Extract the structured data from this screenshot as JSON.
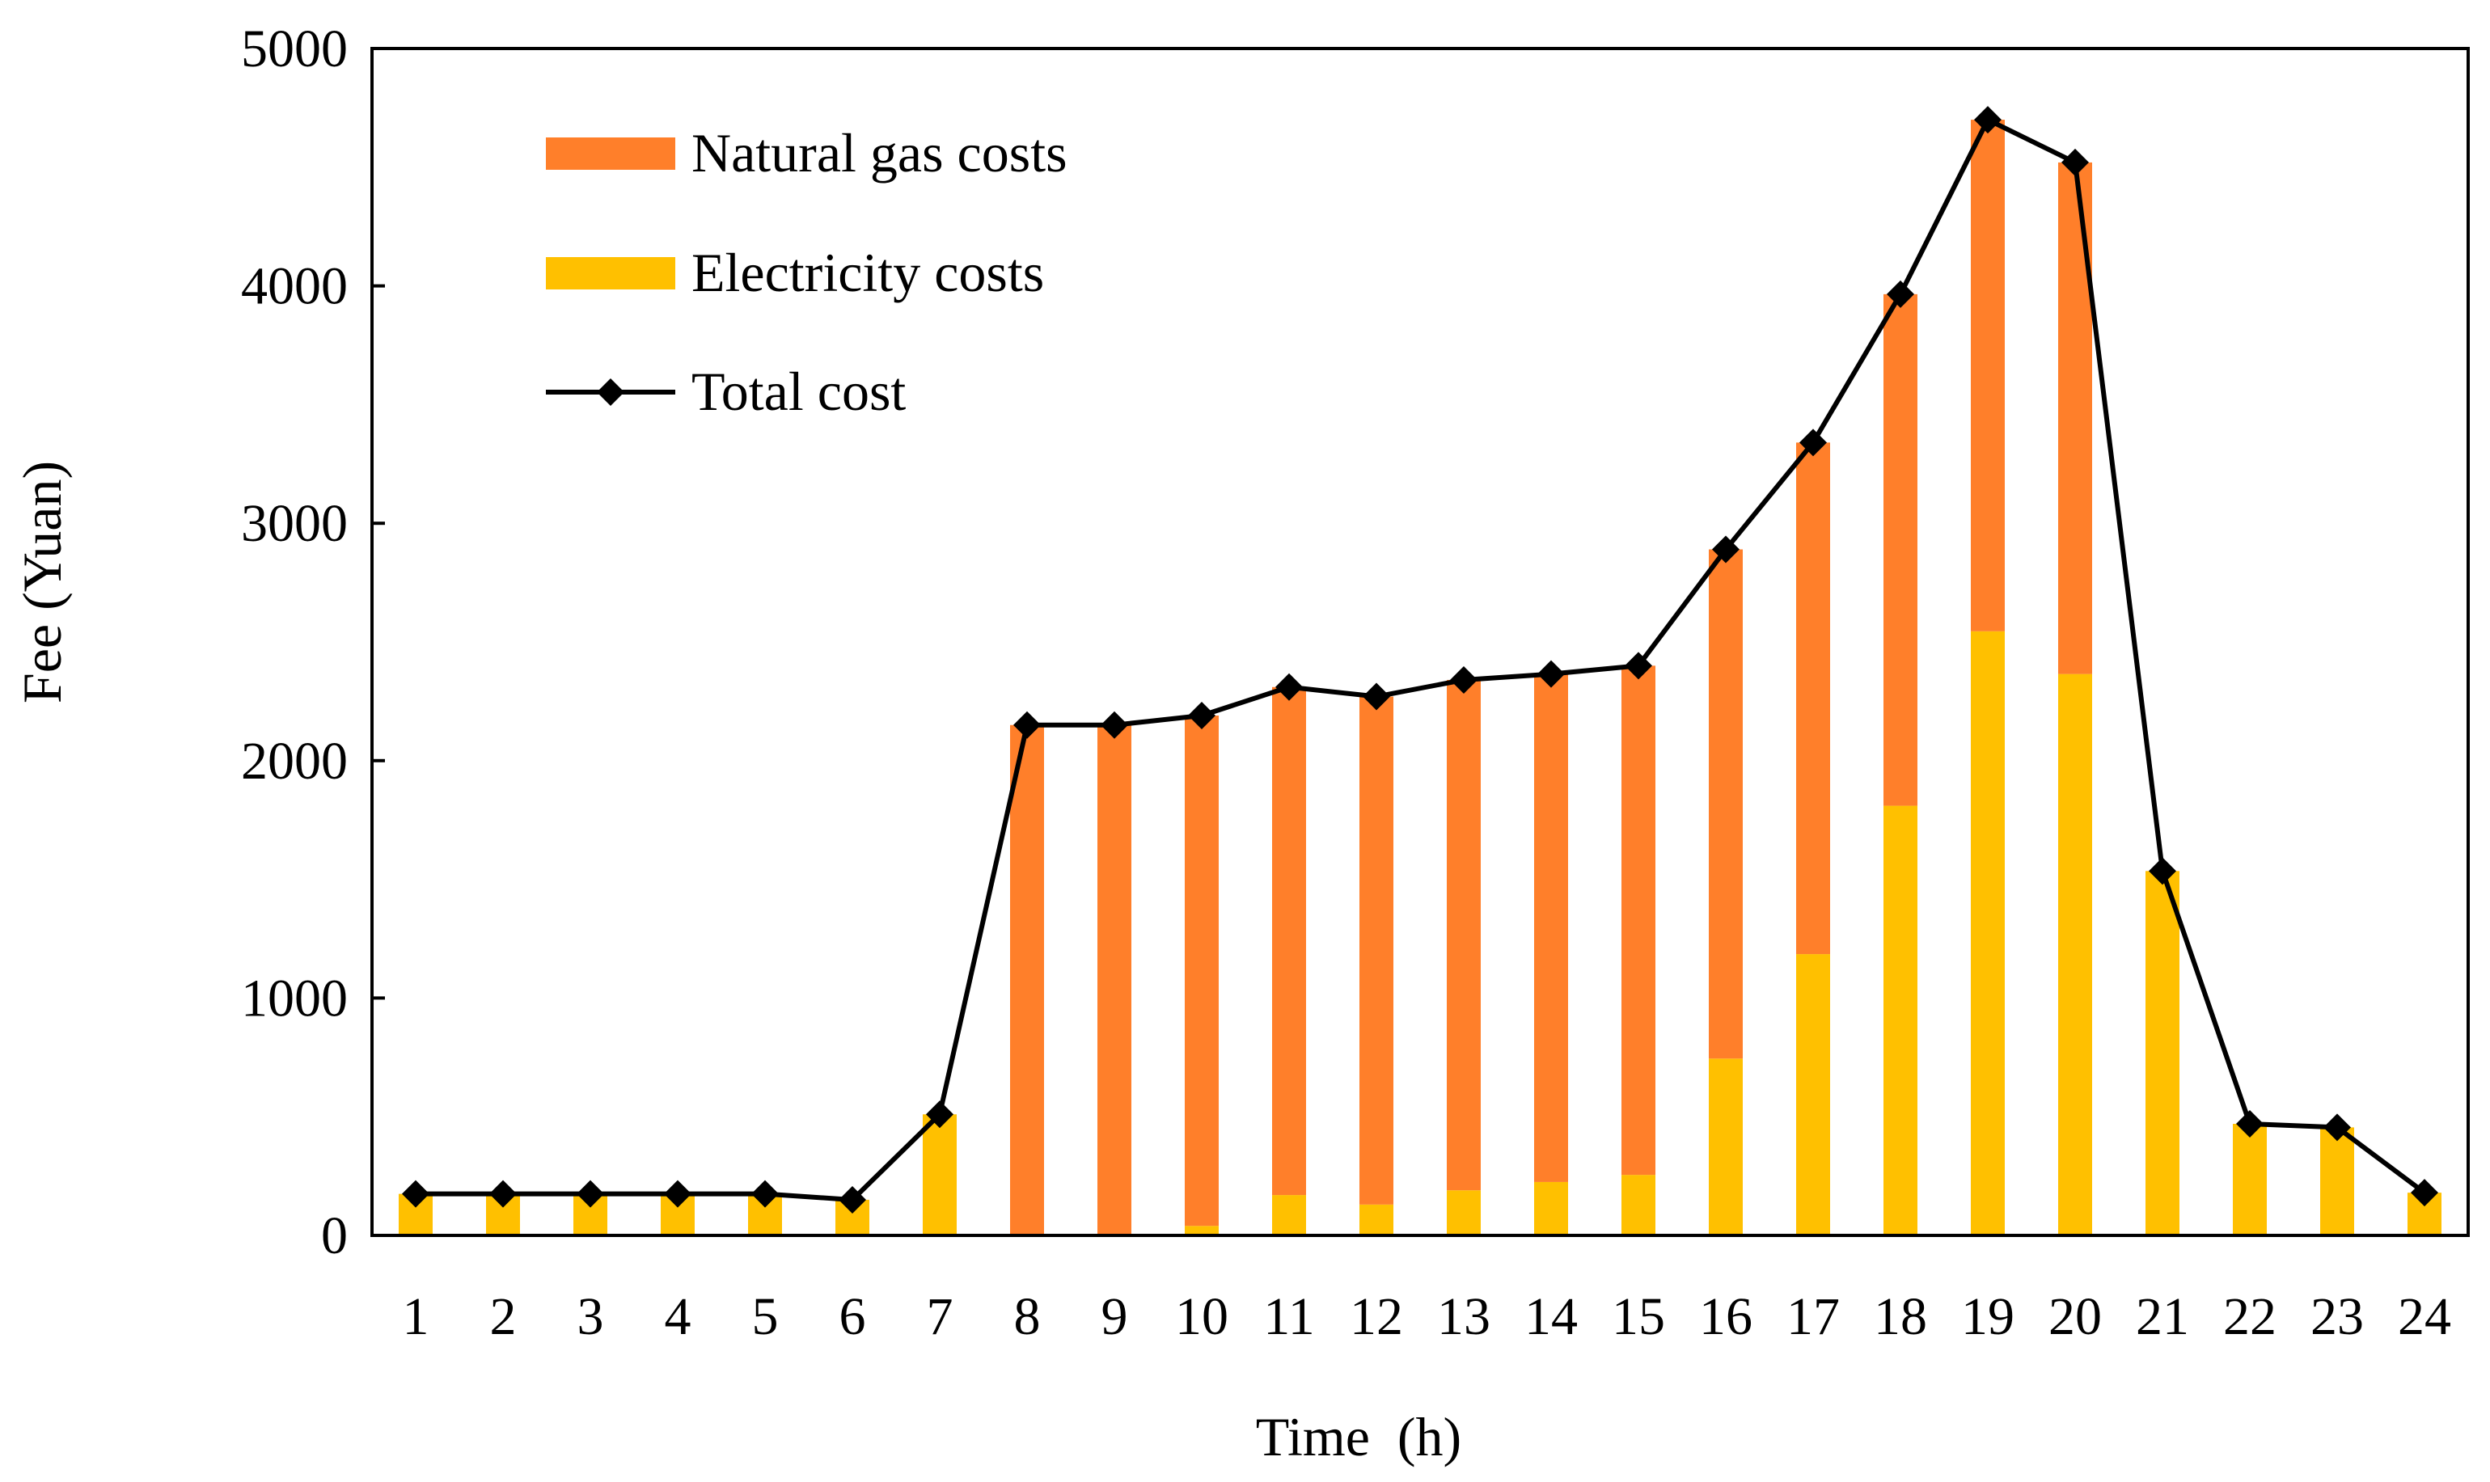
{
  "chart_data": {
    "type": "bar",
    "stacked": true,
    "title": "",
    "xlabel": "Time  (h)",
    "ylabel": "Fee (Yuan)",
    "ylim": [
      0,
      5000
    ],
    "yticks": [
      0,
      1000,
      2000,
      3000,
      4000,
      5000
    ],
    "ytick_labels": [
      "0",
      "1000",
      "2000",
      "3000",
      "4000",
      "5000"
    ],
    "categories": [
      "1",
      "2",
      "3",
      "4",
      "5",
      "6",
      "7",
      "8",
      "9",
      "10",
      "11",
      "12",
      "13",
      "14",
      "15",
      "16",
      "17",
      "18",
      "19",
      "20",
      "21",
      "22",
      "23",
      "24"
    ],
    "series": [
      {
        "name": "Electricity costs",
        "kind": "bar",
        "color": "#FFC000",
        "values": [
          175,
          175,
          175,
          175,
          175,
          150,
          510,
          0,
          0,
          40,
          170,
          130,
          190,
          225,
          255,
          745,
          1185,
          1810,
          2545,
          2365,
          1535,
          470,
          455,
          180
        ]
      },
      {
        "name": "Natural gas costs",
        "kind": "bar",
        "color": "#FF7F2A",
        "values": [
          0,
          0,
          0,
          0,
          0,
          0,
          0,
          2150,
          2150,
          2150,
          2140,
          2140,
          2150,
          2140,
          2145,
          2145,
          2155,
          2155,
          2155,
          2155,
          0,
          0,
          0,
          0
        ]
      },
      {
        "name": "Total cost",
        "kind": "line",
        "color": "#000000",
        "marker": "diamond",
        "values": [
          175,
          175,
          175,
          175,
          175,
          150,
          510,
          2150,
          2150,
          2190,
          2310,
          2270,
          2340,
          2365,
          2400,
          2890,
          3340,
          3965,
          4700,
          4520,
          1535,
          470,
          455,
          180
        ]
      }
    ],
    "legend": {
      "position": "top-left",
      "entries": [
        "Natural gas costs",
        "Electricity costs",
        "Total cost"
      ]
    },
    "grid": false
  }
}
